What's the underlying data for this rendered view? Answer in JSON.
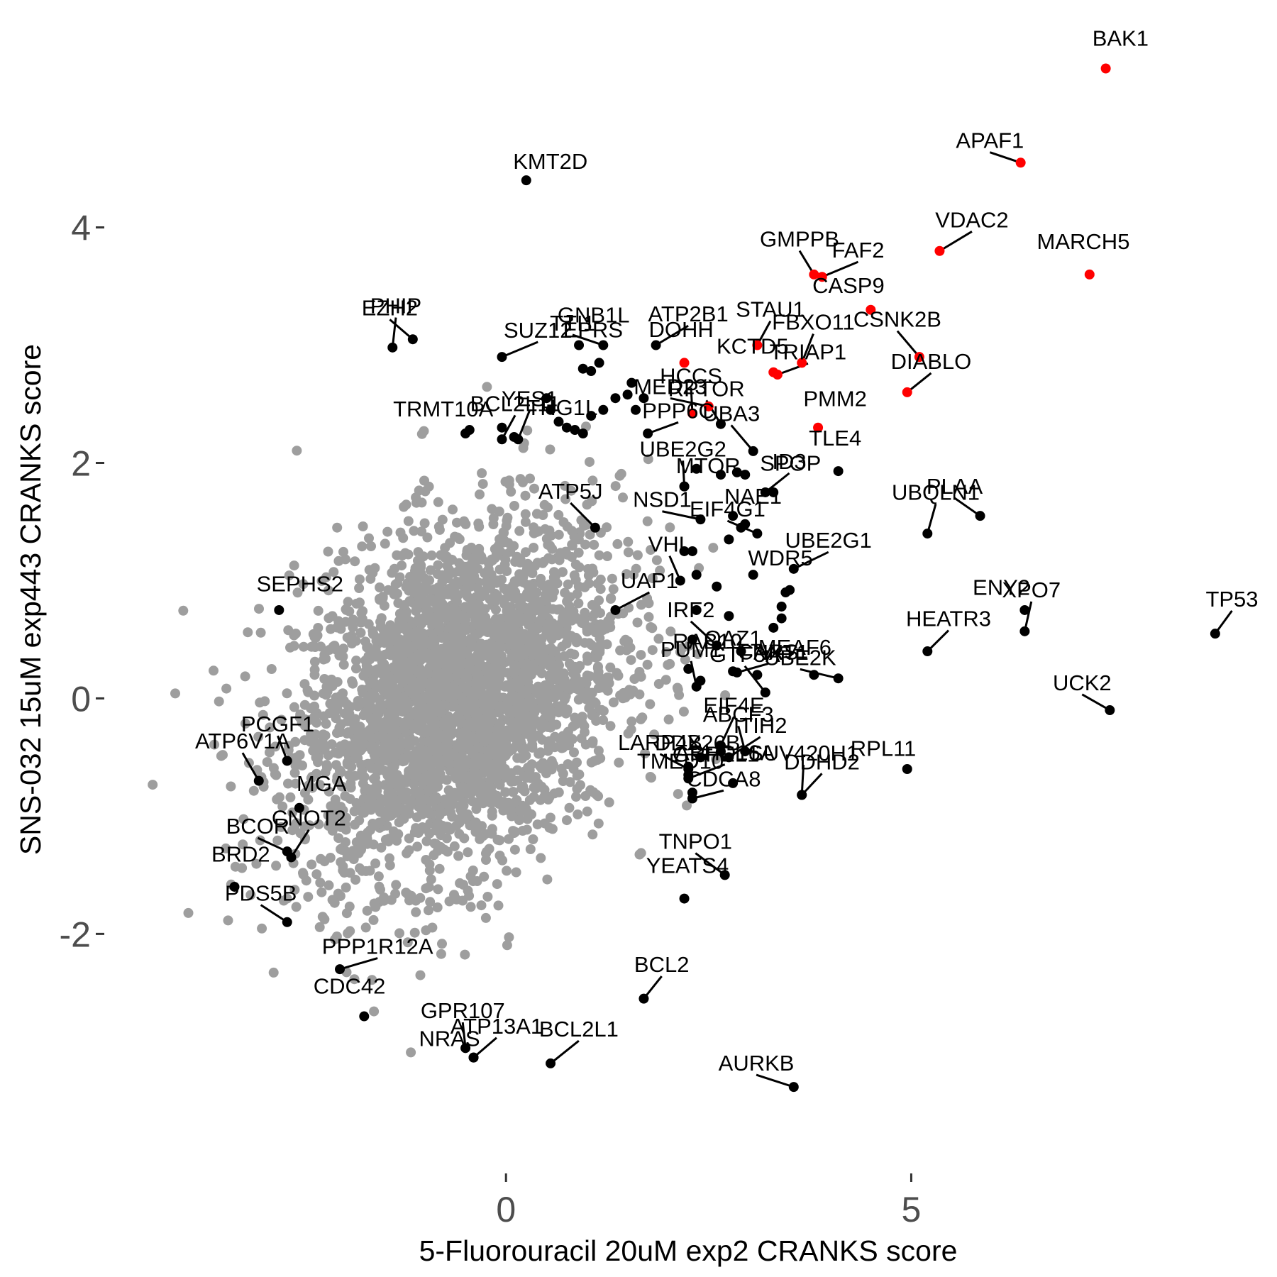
{
  "colors": {
    "background": "#ffffff",
    "bulk_points": "#9e9e9e",
    "labeled_points": "#000000",
    "highlighted_points": "#ff0000"
  },
  "chart_data": {
    "type": "scatter",
    "title": "",
    "xlabel": "5-Fluorouracil 20uM exp2 CRANKS score",
    "ylabel": "SNS-032 15uM exp443 CRANKS score",
    "xlim": [
      -5.0,
      8.9
    ],
    "ylim": [
      -3.95,
      5.6
    ],
    "x_ticks": [
      0,
      5
    ],
    "x_tick_labels": [
      "0",
      "5"
    ],
    "y_ticks": [
      -2,
      0,
      2,
      4
    ],
    "y_tick_labels": [
      "-2",
      "0",
      "2",
      "4"
    ],
    "grid": false,
    "legend": "none",
    "bulk_cloud": {
      "description_color": "grey",
      "n_points": 3200,
      "center": [
        -0.6,
        0.0
      ],
      "sd": [
        1.0,
        0.75
      ],
      "correlation": 0.3
    },
    "highlighted": [
      {
        "label": "BAK1",
        "x": 7.4,
        "y": 5.35
      },
      {
        "label": "APAF1",
        "x": 6.35,
        "y": 4.55
      },
      {
        "label": "VDAC2",
        "x": 5.35,
        "y": 3.8
      },
      {
        "label": "MARCH5",
        "x": 7.2,
        "y": 3.6
      },
      {
        "label": "GMPPB",
        "x": 3.8,
        "y": 3.6
      },
      {
        "label": "FAF2",
        "x": 3.9,
        "y": 3.58
      },
      {
        "label": "CASP9",
        "x": 4.5,
        "y": 3.3
      },
      {
        "label": "STAU1",
        "x": 3.1,
        "y": 3.0
      },
      {
        "label": "FBXO11",
        "x": 3.65,
        "y": 2.85
      },
      {
        "label": "KCTD5",
        "x": 3.3,
        "y": 2.77
      },
      {
        "label": "TRIAP1",
        "x": 3.35,
        "y": 2.75
      },
      {
        "label": "CSNK2B",
        "x": 5.1,
        "y": 2.9
      },
      {
        "label": "DOHH",
        "x": 2.2,
        "y": 2.85
      },
      {
        "label": "DIABLO",
        "x": 4.95,
        "y": 2.6
      },
      {
        "label": "MED23",
        "x": 2.5,
        "y": 2.48
      },
      {
        "label": "PMM2",
        "x": 3.85,
        "y": 2.3
      },
      {
        "label": "HCCS",
        "x": 2.3,
        "y": 2.42
      }
    ],
    "labeled": [
      {
        "label": "KMT2D",
        "x": 0.25,
        "y": 4.4
      },
      {
        "label": "EZH2",
        "x": -1.15,
        "y": 3.05
      },
      {
        "label": "PHIP",
        "x": -1.4,
        "y": 2.98
      },
      {
        "label": "GNB1L",
        "x": 0.9,
        "y": 3.0
      },
      {
        "label": "TTI1",
        "x": 1.2,
        "y": 3.0
      },
      {
        "label": "ATP2B1",
        "x": 1.85,
        "y": 3.0
      },
      {
        "label": "EPRS",
        "x": 1.15,
        "y": 2.85
      },
      {
        "label": "RPTOR",
        "x": 2.65,
        "y": 2.33
      },
      {
        "label": "SUZ12",
        "x": -0.05,
        "y": 2.9
      },
      {
        "label": "TRMT10A",
        "x": -0.5,
        "y": 2.25
      },
      {
        "label": "BCL2L11",
        "x": -0.05,
        "y": 2.2
      },
      {
        "label": "YES1",
        "x": 0.15,
        "y": 2.2
      },
      {
        "label": "THG1L",
        "x": 0.95,
        "y": 2.25
      },
      {
        "label": "PPP6C",
        "x": 1.75,
        "y": 2.25
      },
      {
        "label": "UBA3",
        "x": 3.05,
        "y": 2.1
      },
      {
        "label": "TLE4",
        "x": 4.1,
        "y": 1.93
      },
      {
        "label": "ID3",
        "x": 3.2,
        "y": 1.75
      },
      {
        "label": "NSD1",
        "x": 2.4,
        "y": 1.52
      },
      {
        "label": "SPOP",
        "x": 3.3,
        "y": 1.75
      },
      {
        "label": "UBE2G2",
        "x": 2.2,
        "y": 1.8
      },
      {
        "label": "ATP5J",
        "x": 1.1,
        "y": 1.45
      },
      {
        "label": "MTOR",
        "x": 2.2,
        "y": 1.8
      },
      {
        "label": "PLAA",
        "x": 5.85,
        "y": 1.55
      },
      {
        "label": "UBQLN1",
        "x": 5.2,
        "y": 1.4
      },
      {
        "label": "NAE1",
        "x": 2.9,
        "y": 1.45
      },
      {
        "label": "EIF4G1",
        "x": 3.1,
        "y": 1.4
      },
      {
        "label": "UBE2G1",
        "x": 3.55,
        "y": 1.1
      },
      {
        "label": "WDR5",
        "x": 3.5,
        "y": 0.92
      },
      {
        "label": "VHL",
        "x": 2.15,
        "y": 1.0
      },
      {
        "label": "UAP1",
        "x": 1.35,
        "y": 0.75
      },
      {
        "label": "ENY2",
        "x": 6.4,
        "y": 0.75
      },
      {
        "label": "TP53",
        "x": 8.75,
        "y": 0.55
      },
      {
        "label": "XPO7",
        "x": 6.4,
        "y": 0.57
      },
      {
        "label": "MEAF6",
        "x": 3.8,
        "y": 0.2
      },
      {
        "label": "CARS",
        "x": 2.85,
        "y": 0.22
      },
      {
        "label": "IRF2",
        "x": 2.6,
        "y": 0.45
      },
      {
        "label": "OAZ1",
        "x": 2.8,
        "y": 0.23
      },
      {
        "label": "HEATR3",
        "x": 5.2,
        "y": 0.4
      },
      {
        "label": "UBE2K",
        "x": 4.1,
        "y": 0.17
      },
      {
        "label": "RAB10",
        "x": 2.25,
        "y": 0.25
      },
      {
        "label": "PUM1",
        "x": 2.35,
        "y": 0.1
      },
      {
        "label": "GTF3A",
        "x": 3.2,
        "y": 0.05
      },
      {
        "label": "NXT1",
        "x": 3.1,
        "y": 0.2
      },
      {
        "label": "UCK2",
        "x": 7.45,
        "y": -0.1
      },
      {
        "label": "EIF4E",
        "x": 2.65,
        "y": -0.4
      },
      {
        "label": "DDX26B",
        "x": 2.25,
        "y": -0.65
      },
      {
        "label": "LARP4B",
        "x": 2.25,
        "y": -0.6
      },
      {
        "label": "ABHD16A",
        "x": 2.25,
        "y": -0.68
      },
      {
        "label": "TMED10",
        "x": 2.3,
        "y": -0.8
      },
      {
        "label": "ABCF3",
        "x": 2.95,
        "y": -0.45
      },
      {
        "label": "ITIH2",
        "x": 2.75,
        "y": -0.5
      },
      {
        "label": "RPL11",
        "x": 4.95,
        "y": -0.6
      },
      {
        "label": "DDHD2",
        "x": 3.65,
        "y": -0.82
      },
      {
        "label": "SUV420H1",
        "x": 3.65,
        "y": -0.82
      },
      {
        "label": "GRPEL1",
        "x": 2.8,
        "y": -0.72
      },
      {
        "label": "CDCA8",
        "x": 2.3,
        "y": -0.85
      },
      {
        "label": "TNPO1",
        "x": 2.7,
        "y": -1.5
      },
      {
        "label": "YEATS4",
        "x": 2.2,
        "y": -1.7
      },
      {
        "label": "BCL2",
        "x": 1.7,
        "y": -2.55
      },
      {
        "label": "AURKB",
        "x": 3.55,
        "y": -3.3
      },
      {
        "label": "SEPHS2",
        "x": -2.8,
        "y": 0.75
      },
      {
        "label": "PCGF1",
        "x": -2.7,
        "y": -0.53
      },
      {
        "label": "ATP6V1A",
        "x": -3.05,
        "y": -0.7
      },
      {
        "label": "MGA",
        "x": -2.55,
        "y": -0.93
      },
      {
        "label": "BCOR",
        "x": -2.7,
        "y": -1.3
      },
      {
        "label": "CNOT2",
        "x": -2.65,
        "y": -1.35
      },
      {
        "label": "BRD2",
        "x": -3.35,
        "y": -1.6
      },
      {
        "label": "PDS5B",
        "x": -2.7,
        "y": -1.9
      },
      {
        "label": "PPP1R12A",
        "x": -2.05,
        "y": -2.3
      },
      {
        "label": "CDC42",
        "x": -1.75,
        "y": -2.7
      },
      {
        "label": "GPR107",
        "x": -0.5,
        "y": -2.97
      },
      {
        "label": "BCL2L1",
        "x": 0.55,
        "y": -3.1
      },
      {
        "label": "NRAS",
        "x": -0.4,
        "y": -3.05
      },
      {
        "label": "ATP13A1",
        "x": -0.4,
        "y": -3.05
      }
    ],
    "extra_black_points": [
      [
        0.95,
        2.8
      ],
      [
        1.05,
        2.78
      ],
      [
        1.55,
        2.68
      ],
      [
        1.7,
        2.55
      ],
      [
        1.35,
        2.55
      ],
      [
        1.5,
        2.58
      ],
      [
        1.2,
        2.45
      ],
      [
        1.6,
        2.45
      ],
      [
        0.5,
        2.55
      ],
      [
        0.55,
        2.45
      ],
      [
        0.65,
        2.35
      ],
      [
        0.75,
        2.3
      ],
      [
        1.05,
        2.4
      ],
      [
        0.85,
        2.28
      ],
      [
        -0.05,
        2.3
      ],
      [
        -0.45,
        2.28
      ],
      [
        0.1,
        2.22
      ],
      [
        2.35,
        1.95
      ],
      [
        2.65,
        1.9
      ],
      [
        2.85,
        1.92
      ],
      [
        2.95,
        1.9
      ],
      [
        2.8,
        1.55
      ],
      [
        2.95,
        1.48
      ],
      [
        2.75,
        1.35
      ],
      [
        2.2,
        1.25
      ],
      [
        2.3,
        1.25
      ],
      [
        2.35,
        1.05
      ],
      [
        2.6,
        0.95
      ],
      [
        3.05,
        1.05
      ],
      [
        3.45,
        0.9
      ],
      [
        3.4,
        0.78
      ],
      [
        2.35,
        0.75
      ],
      [
        2.75,
        0.7
      ],
      [
        3.3,
        0.6
      ],
      [
        3.4,
        0.68
      ],
      [
        2.3,
        0.5
      ],
      [
        2.9,
        0.4
      ],
      [
        2.4,
        0.15
      ],
      [
        2.65,
        -0.45
      ],
      [
        2.4,
        -0.5
      ],
      [
        2.25,
        -0.58
      ]
    ]
  }
}
